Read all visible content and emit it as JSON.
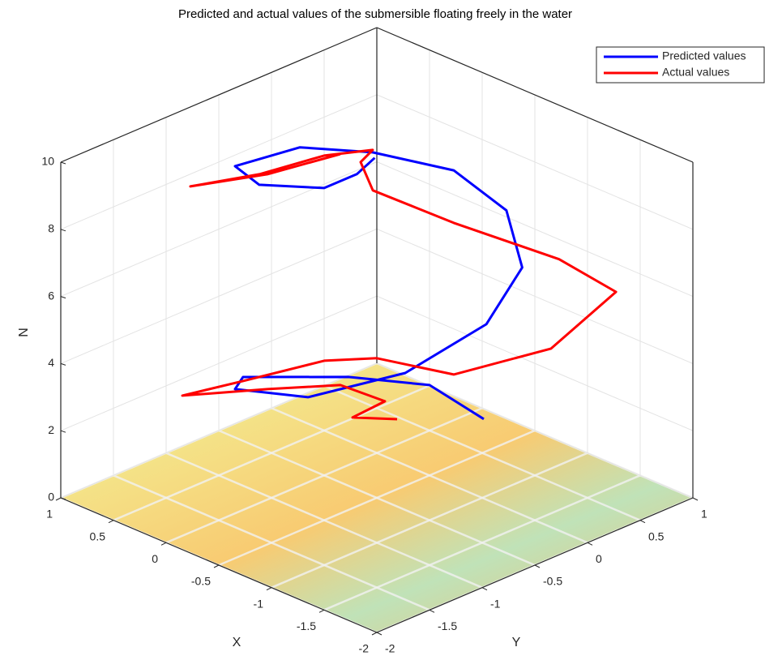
{
  "chart_data": {
    "type": "line3d",
    "title": "Predicted and actual values of the submersible floating freely in the water",
    "xlabel": "X",
    "ylabel": "Y",
    "zlabel": "N",
    "xlim": [
      -2,
      1
    ],
    "ylim": [
      -2,
      1
    ],
    "zlim": [
      0,
      10
    ],
    "xticks": [
      -2,
      -1.5,
      -1,
      -0.5,
      0,
      0.5,
      1
    ],
    "yticks": [
      -2,
      -1.5,
      -1,
      -0.5,
      0,
      0.5,
      1
    ],
    "zticks": [
      0,
      2,
      4,
      6,
      8,
      10
    ],
    "grid": true,
    "legend": "upper right",
    "series": [
      {
        "name": "Predicted values",
        "color": "#0000ff",
        "x": [
          -0.99,
          -0.615,
          -0.327,
          0.06,
          0.038,
          -0.249,
          -0.515,
          -0.656,
          -0.68,
          -0.53,
          -0.32,
          0.003,
          0.33,
          0.503,
          0.33,
          -0.089,
          -0.165,
          -0.18
        ],
        "y": [
          0.025,
          -0.115,
          -0.597,
          -1.21,
          -1.308,
          -0.903,
          -0.245,
          0.383,
          0.7,
          0.7,
          0.41,
          -0.036,
          -0.4,
          -0.843,
          -0.786,
          -0.589,
          -0.355,
          -0.2
        ],
        "z": [
          2.3,
          3,
          3.5,
          3.8,
          3.6,
          3.2,
          3.4,
          4.2,
          5.5,
          7,
          8.3,
          9,
          9.2,
          9,
          8.6,
          8.8,
          9,
          9.3
        ]
      },
      {
        "name": "Actual values",
        "color": "#ff0000",
        "x": [
          -0.617,
          -0.387,
          -0.51,
          -0.267,
          -0.041,
          0.365,
          0.09,
          -0.218,
          -0.478,
          -0.837,
          -1.235,
          -1.51,
          -1.1,
          -0.607,
          -0.272,
          -0.123,
          -0.157,
          0.085,
          0.297,
          0.526,
          0.184,
          -0.012
        ],
        "y": [
          -0.425,
          -0.618,
          -0.433,
          -0.613,
          -1.079,
          -1.481,
          -1.18,
          -0.718,
          -0.478,
          -0.107,
          0.419,
          0.76,
          0.63,
          0.124,
          -0.31,
          -0.277,
          -0.196,
          -0.415,
          -0.818,
          -1.244,
          -0.855,
          -0.358
        ],
        "z": [
          2.4,
          2.4,
          2.8,
          3.2,
          3.4,
          3.2,
          3.6,
          4,
          4.1,
          3.6,
          4.2,
          5.8,
          6.4,
          7.5,
          8.6,
          9.2,
          9.5,
          9.3,
          9,
          8.9,
          9.2,
          9.4
        ]
      }
    ]
  }
}
